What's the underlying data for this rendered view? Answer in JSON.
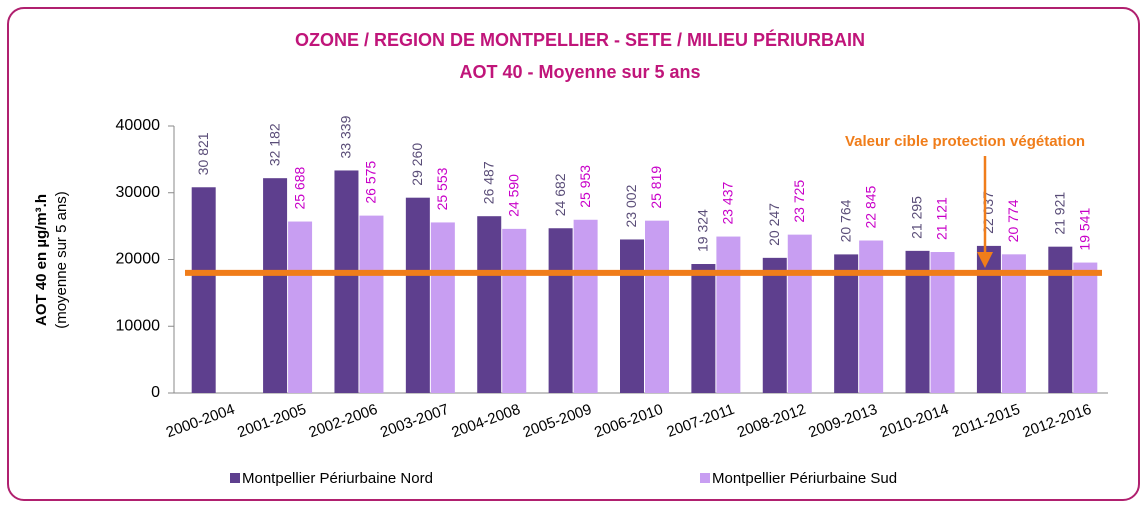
{
  "chart_data": {
    "type": "bar",
    "title": "OZONE / REGION DE MONTPELLIER - SETE / MILIEU PÉRIURBAIN",
    "subtitle": "AOT 40 - Moyenne sur 5 ans",
    "y_label": "AOT 40 en µg/m³.h",
    "y_label_sub": "(moyenne sur 5 ans)",
    "annotation": "Valeur cible  protection végétation",
    "target": 18000,
    "target_color": "#f07d1a",
    "categories": [
      "2000-2004",
      "2001-2005",
      "2002-2006",
      "2003-2007",
      "2004-2008",
      "2005-2009",
      "2006-2010",
      "2007-2011",
      "2008-2012",
      "2009-2013",
      "2010-2014",
      "2011-2015",
      "2012-2016"
    ],
    "series": [
      {
        "name": "Montpellier Périurbaine Nord",
        "color": "#5e3f8e",
        "label_color": "#5a4d78",
        "values": [
          30821,
          32182,
          33339,
          29260,
          26487,
          24682,
          23002,
          19324,
          20247,
          20764,
          21295,
          22037,
          21921
        ],
        "value_labels": [
          "30 821",
          "32 182",
          "33 339",
          "29 260",
          "26 487",
          "24 682",
          "23 002",
          "19 324",
          "20 247",
          "20 764",
          "21 295",
          "22 037",
          "21 921"
        ]
      },
      {
        "name": "Montpellier Périurbaine Sud",
        "color": "#c89ef2",
        "label_color": "#c800c8",
        "values": [
          null,
          25688,
          26575,
          25553,
          24590,
          25953,
          25819,
          23437,
          23725,
          22845,
          21121,
          20774,
          19541
        ],
        "value_labels": [
          null,
          "25 688",
          "26 575",
          "25 553",
          "24 590",
          "25 953",
          "25 819",
          "23 437",
          "23 725",
          "22 845",
          "21 121",
          "20 774",
          "19 541"
        ]
      }
    ],
    "ylim": [
      0,
      40000
    ],
    "yticks": [
      0,
      10000,
      20000,
      30000,
      40000
    ]
  }
}
